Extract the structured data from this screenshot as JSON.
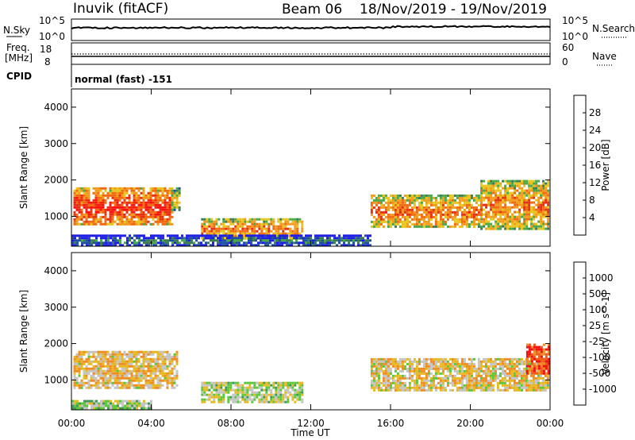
{
  "header": {
    "station": "Inuvik (fitACF)",
    "beam": "Beam 06",
    "dates": "18/Nov/2019 - 19/Nov/2019"
  },
  "top_panels": {
    "nsky_label": "N.Sky",
    "nsearch_label": "N.Search",
    "noise_ticks": [
      "10^5",
      "10^0"
    ],
    "freq_label_1": "Freq.",
    "freq_label_2": "[MHz]",
    "freq_ticks": [
      "18",
      "8"
    ],
    "nave_label": "Nave",
    "nave_ticks": [
      "60",
      "0"
    ],
    "cpid_label": "CPID",
    "cpid_text": "normal (fast) -151"
  },
  "axes": {
    "ylabel": "Slant Range [km]",
    "xlabel": "Time UT",
    "yticks": [
      "4000",
      "3000",
      "2000",
      "1000"
    ],
    "xticks": [
      "00:00",
      "04:00",
      "08:00",
      "12:00",
      "16:00",
      "20:00",
      "00:00"
    ]
  },
  "colors": {
    "power": [
      "#1e1ee6",
      "#1f4fa0",
      "#3a7d50",
      "#4aa848",
      "#e8c51a",
      "#f29a1a",
      "#f26a10",
      "#e83010",
      "#ff1010"
    ],
    "velocity": [
      "#1a1ae8",
      "#2660b0",
      "#3f9a55",
      "#5ac83a",
      "#c4c4c4",
      "#e8b820",
      "#f08c20",
      "#f05a18",
      "#f01010"
    ],
    "paper": "#ffffff"
  },
  "chart_data": [
    {
      "type": "heatmap",
      "name": "Power panel",
      "xlabel": "Time UT",
      "ylabel": "Slant Range [km]",
      "xlim_hours": [
        0,
        24
      ],
      "ylim_km": [
        180,
        4500
      ],
      "colorbar": {
        "label": "Power [dB]",
        "ticks": [
          "28",
          "24",
          "20",
          "16",
          "12",
          "8",
          "4"
        ],
        "range": [
          0,
          30
        ]
      },
      "regions": [
        {
          "t": [
            0.1,
            5.0
          ],
          "r": [
            780,
            1800
          ],
          "value": 27
        },
        {
          "t": [
            5.0,
            5.4
          ],
          "r": [
            1200,
            1800
          ],
          "value": 18
        },
        {
          "t": [
            6.5,
            11.6
          ],
          "r": [
            380,
            950
          ],
          "value": 22
        },
        {
          "t": [
            15.0,
            20.5
          ],
          "r": [
            700,
            1600
          ],
          "value": 23
        },
        {
          "t": [
            20.5,
            23.9
          ],
          "r": [
            650,
            2000
          ],
          "value": 22
        },
        {
          "t": [
            0.0,
            15.0
          ],
          "r": [
            200,
            500
          ],
          "value": 9
        }
      ]
    },
    {
      "type": "heatmap",
      "name": "Velocity panel",
      "xlabel": "Time UT",
      "ylabel": "Slant Range [km]",
      "xlim_hours": [
        0,
        24
      ],
      "ylim_km": [
        180,
        4500
      ],
      "colorbar": {
        "label": "Velocity [m s^-1]",
        "ticks": [
          "1000",
          "500",
          "100",
          "25",
          "-25",
          "-100",
          "-500",
          "-1000"
        ],
        "range": [
          -1000,
          1000
        ]
      },
      "regions": [
        {
          "t": [
            0.1,
            5.3
          ],
          "r": [
            800,
            1800
          ],
          "value": -200
        },
        {
          "t": [
            6.5,
            11.6
          ],
          "r": [
            380,
            950
          ],
          "value": 50
        },
        {
          "t": [
            15.0,
            23.9
          ],
          "r": [
            700,
            1600
          ],
          "value": -150
        },
        {
          "t": [
            22.8,
            23.9
          ],
          "r": [
            1200,
            2000
          ],
          "value": -700
        },
        {
          "t": [
            0.0,
            4.0
          ],
          "r": [
            200,
            450
          ],
          "value": 120
        }
      ]
    }
  ]
}
